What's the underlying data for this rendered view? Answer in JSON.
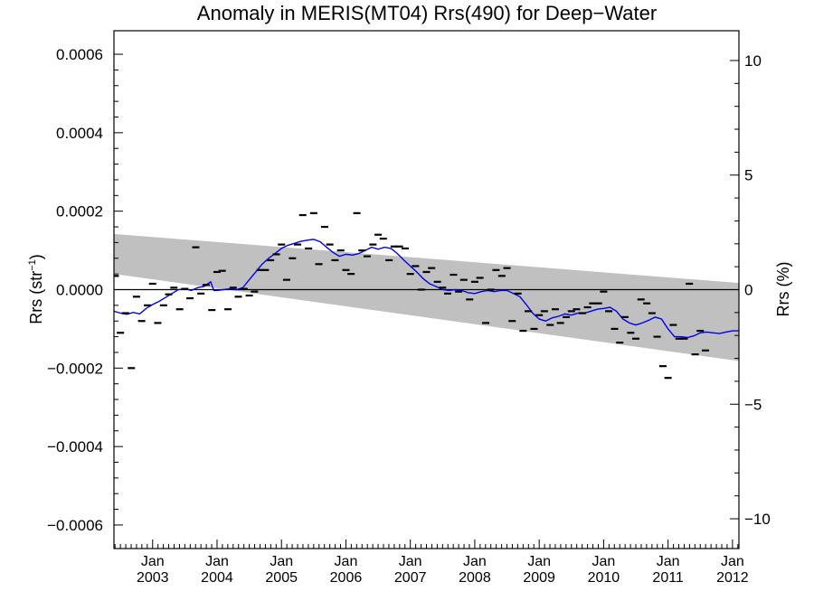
{
  "chart_data": {
    "type": "scatter",
    "title": "Anomaly in MERIS(MT04) Rrs(490) for Deep−Water",
    "ylabel_left_main": "Rrs (str",
    "ylabel_left_sup": "−1",
    "ylabel_left_close": ")",
    "ylabel_right": "Rrs (%)",
    "xlim": [
      2002.4,
      2012.1
    ],
    "ylim": [
      -0.00066,
      0.00066
    ],
    "ylim_right": [
      -11.3,
      11.3
    ],
    "y_ticks_left": [
      {
        "value": 0.0006,
        "label": "0.0006"
      },
      {
        "value": 0.0004,
        "label": "0.0004"
      },
      {
        "value": 0.0002,
        "label": "0.0002"
      },
      {
        "value": 0.0,
        "label": "0.0000"
      },
      {
        "value": -0.0002,
        "label": "−0.0002"
      },
      {
        "value": -0.0004,
        "label": "−0.0004"
      },
      {
        "value": -0.0006,
        "label": "−0.0006"
      }
    ],
    "y_ticks_right": [
      {
        "value": 10,
        "label": "10"
      },
      {
        "value": 5,
        "label": "5"
      },
      {
        "value": 0,
        "label": "0"
      },
      {
        "value": -5,
        "label": "−5"
      },
      {
        "value": -10,
        "label": "−10"
      }
    ],
    "x_ticks": [
      {
        "value": 2003.0,
        "month": "Jan",
        "year": "2003"
      },
      {
        "value": 2004.0,
        "month": "Jan",
        "year": "2004"
      },
      {
        "value": 2005.0,
        "month": "Jan",
        "year": "2005"
      },
      {
        "value": 2006.0,
        "month": "Jan",
        "year": "2006"
      },
      {
        "value": 2007.0,
        "month": "Jan",
        "year": "2007"
      },
      {
        "value": 2008.0,
        "month": "Jan",
        "year": "2008"
      },
      {
        "value": 2009.0,
        "month": "Jan",
        "year": "2009"
      },
      {
        "value": 2010.0,
        "month": "Jan",
        "year": "2010"
      },
      {
        "value": 2011.0,
        "month": "Jan",
        "year": "2011"
      },
      {
        "value": 2012.0,
        "month": "Jan",
        "year": "2012"
      }
    ],
    "band": {
      "color": "#c0c0c0",
      "upper": [
        [
          2002.4,
          0.000142
        ],
        [
          2012.1,
          1.7e-05
        ]
      ],
      "lower": [
        [
          2002.4,
          4e-05
        ],
        [
          2012.1,
          -0.000182
        ]
      ]
    },
    "zero_line": true,
    "monthly_anomalies": [
      [
        2002.42,
        3.5e-05
      ],
      [
        2002.5,
        -0.00011
      ],
      [
        2002.58,
        -6e-05
      ],
      [
        2002.67,
        -0.0002
      ],
      [
        2002.75,
        -1.8e-05
      ],
      [
        2002.83,
        -8e-05
      ],
      [
        2002.92,
        -4e-05
      ],
      [
        2003.0,
        1.5e-05
      ],
      [
        2003.08,
        -8.5e-05
      ],
      [
        2003.17,
        -4e-05
      ],
      [
        2003.25,
        -1.2e-05
      ],
      [
        2003.33,
        5e-06
      ],
      [
        2003.42,
        -5e-05
      ],
      [
        2003.5,
        2e-06
      ],
      [
        2003.58,
        -2.2e-05
      ],
      [
        2003.67,
        0.000108
      ],
      [
        2003.75,
        -1e-05
      ],
      [
        2003.83,
        1.2e-05
      ],
      [
        2003.92,
        -5.2e-05
      ],
      [
        2004.0,
        4.5e-05
      ],
      [
        2004.08,
        4.8e-05
      ],
      [
        2004.17,
        -5e-05
      ],
      [
        2004.25,
        5e-06
      ],
      [
        2004.33,
        -1.8e-05
      ],
      [
        2004.42,
        2e-06
      ],
      [
        2004.5,
        -1.5e-05
      ],
      [
        2004.58,
        -5e-06
      ],
      [
        2004.67,
        5e-05
      ],
      [
        2004.75,
        5e-05
      ],
      [
        2004.83,
        7.5e-05
      ],
      [
        2004.92,
        9e-05
      ],
      [
        2005.0,
        0.000115
      ],
      [
        2005.08,
        2.5e-05
      ],
      [
        2005.17,
        8e-05
      ],
      [
        2005.25,
        0.000115
      ],
      [
        2005.33,
        0.00019
      ],
      [
        2005.42,
        0.000105
      ],
      [
        2005.5,
        0.000195
      ],
      [
        2005.58,
        6.5e-05
      ],
      [
        2005.67,
        0.00016
      ],
      [
        2005.75,
        0.000115
      ],
      [
        2005.83,
        7.5e-05
      ],
      [
        2005.92,
        0.0001
      ],
      [
        2006.0,
        5e-05
      ],
      [
        2006.08,
        4e-05
      ],
      [
        2006.17,
        0.000195
      ],
      [
        2006.25,
        0.0001
      ],
      [
        2006.33,
        8.5e-05
      ],
      [
        2006.42,
        0.000115
      ],
      [
        2006.5,
        0.00014
      ],
      [
        2006.58,
        0.00013
      ],
      [
        2006.67,
        7.5e-05
      ],
      [
        2006.75,
        0.00011
      ],
      [
        2006.83,
        0.00011
      ],
      [
        2006.92,
        0.000105
      ],
      [
        2007.0,
        4e-05
      ],
      [
        2007.08,
        6e-05
      ],
      [
        2007.17,
        0.0
      ],
      [
        2007.25,
        4.5e-05
      ],
      [
        2007.33,
        5.5e-05
      ],
      [
        2007.42,
        2e-05
      ],
      [
        2007.5,
        5e-06
      ],
      [
        2007.58,
        -1e-05
      ],
      [
        2007.67,
        3.8e-05
      ],
      [
        2007.75,
        -5e-06
      ],
      [
        2007.83,
        2.5e-05
      ],
      [
        2007.92,
        -2.5e-05
      ],
      [
        2008.0,
        2e-05
      ],
      [
        2008.08,
        3e-05
      ],
      [
        2008.17,
        -8.5e-05
      ],
      [
        2008.25,
        0.0
      ],
      [
        2008.33,
        5e-05
      ],
      [
        2008.42,
        3.5e-05
      ],
      [
        2008.5,
        5.5e-05
      ],
      [
        2008.58,
        -8e-05
      ],
      [
        2008.67,
        -1e-05
      ],
      [
        2008.75,
        -0.000105
      ],
      [
        2008.83,
        -5.5e-05
      ],
      [
        2008.92,
        -0.0001
      ],
      [
        2009.0,
        -6.5e-05
      ],
      [
        2009.08,
        -5.5e-05
      ],
      [
        2009.17,
        -9e-05
      ],
      [
        2009.25,
        -5e-05
      ],
      [
        2009.33,
        -8.5e-05
      ],
      [
        2009.42,
        -7e-05
      ],
      [
        2009.5,
        -5.5e-05
      ],
      [
        2009.58,
        -5e-05
      ],
      [
        2009.67,
        -6e-05
      ],
      [
        2009.75,
        -4.5e-05
      ],
      [
        2009.83,
        -3.5e-05
      ],
      [
        2009.92,
        -3.5e-05
      ],
      [
        2010.0,
        -5e-06
      ],
      [
        2010.08,
        -5.5e-05
      ],
      [
        2010.17,
        -0.0001
      ],
      [
        2010.25,
        -0.000135
      ],
      [
        2010.33,
        -7e-05
      ],
      [
        2010.42,
        -0.00011
      ],
      [
        2010.5,
        -0.000125
      ],
      [
        2010.58,
        -2.5e-05
      ],
      [
        2010.67,
        -3.5e-05
      ],
      [
        2010.75,
        -6e-05
      ],
      [
        2010.83,
        -0.00012
      ],
      [
        2010.92,
        -0.000195
      ],
      [
        2011.0,
        -0.000225
      ],
      [
        2011.08,
        -9e-05
      ],
      [
        2011.17,
        -0.000125
      ],
      [
        2011.25,
        -0.000125
      ],
      [
        2011.33,
        1.5e-05
      ],
      [
        2011.42,
        -0.000165
      ],
      [
        2011.5,
        -0.000105
      ],
      [
        2011.58,
        -0.000155
      ]
    ],
    "running_mean": {
      "color": "#0000ee",
      "points": [
        [
          2002.4,
          -5.5e-05
        ],
        [
          2002.5,
          -6e-05
        ],
        [
          2002.6,
          -6.3e-05
        ],
        [
          2002.7,
          -5.8e-05
        ],
        [
          2002.8,
          -6.2e-05
        ],
        [
          2002.9,
          -4.8e-05
        ],
        [
          2003.0,
          -3.8e-05
        ],
        [
          2003.1,
          -3e-05
        ],
        [
          2003.2,
          -2e-05
        ],
        [
          2003.3,
          -1e-05
        ],
        [
          2003.4,
          0.0
        ],
        [
          2003.5,
          2e-06
        ],
        [
          2003.6,
          -2e-06
        ],
        [
          2003.7,
          5e-06
        ],
        [
          2003.8,
          8e-06
        ],
        [
          2003.9,
          2e-05
        ],
        [
          2003.95,
          -2e-06
        ],
        [
          2004.0,
          -2e-06
        ],
        [
          2004.1,
          0.0
        ],
        [
          2004.2,
          2e-06
        ],
        [
          2004.3,
          0.0
        ],
        [
          2004.4,
          5e-06
        ],
        [
          2004.5,
          2.5e-05
        ],
        [
          2004.6,
          4.5e-05
        ],
        [
          2004.7,
          6.5e-05
        ],
        [
          2004.8,
          8e-05
        ],
        [
          2004.9,
          9.2e-05
        ],
        [
          2005.0,
          0.000105
        ],
        [
          2005.1,
          0.000113
        ],
        [
          2005.2,
          0.000118
        ],
        [
          2005.3,
          0.000123
        ],
        [
          2005.4,
          0.000126
        ],
        [
          2005.5,
          0.000128
        ],
        [
          2005.6,
          0.000122
        ],
        [
          2005.7,
          0.000108
        ],
        [
          2005.8,
          9.5e-05
        ],
        [
          2005.9,
          8.5e-05
        ],
        [
          2006.0,
          9e-05
        ],
        [
          2006.1,
          8.8e-05
        ],
        [
          2006.2,
          9.2e-05
        ],
        [
          2006.3,
          0.0001
        ],
        [
          2006.4,
          0.000108
        ],
        [
          2006.5,
          0.000103
        ],
        [
          2006.6,
          0.000108
        ],
        [
          2006.7,
          0.000105
        ],
        [
          2006.8,
          9.2e-05
        ],
        [
          2006.9,
          7.5e-05
        ],
        [
          2007.0,
          6e-05
        ],
        [
          2007.1,
          4.5e-05
        ],
        [
          2007.2,
          2.8e-05
        ],
        [
          2007.3,
          1.5e-05
        ],
        [
          2007.4,
          8e-06
        ],
        [
          2007.5,
          0.0
        ],
        [
          2007.6,
          -2e-06
        ],
        [
          2007.7,
          0.0
        ],
        [
          2007.8,
          -2e-06
        ],
        [
          2007.9,
          -8e-06
        ],
        [
          2008.0,
          -1e-05
        ],
        [
          2008.1,
          -5e-06
        ],
        [
          2008.2,
          -2e-06
        ],
        [
          2008.3,
          -5e-06
        ],
        [
          2008.4,
          -2e-06
        ],
        [
          2008.5,
          -2e-06
        ],
        [
          2008.6,
          -1e-05
        ],
        [
          2008.7,
          -1.8e-05
        ],
        [
          2008.8,
          -3.8e-05
        ],
        [
          2008.9,
          -6e-05
        ],
        [
          2009.0,
          -7.5e-05
        ],
        [
          2009.1,
          -8e-05
        ],
        [
          2009.2,
          -7.2e-05
        ],
        [
          2009.3,
          -6.8e-05
        ],
        [
          2009.4,
          -6.2e-05
        ],
        [
          2009.5,
          -6.5e-05
        ],
        [
          2009.6,
          -6e-05
        ],
        [
          2009.7,
          -6e-05
        ],
        [
          2009.8,
          -5.5e-05
        ],
        [
          2009.9,
          -5e-05
        ],
        [
          2010.0,
          -4.8e-05
        ],
        [
          2010.1,
          -4.5e-05
        ],
        [
          2010.2,
          -5.5e-05
        ],
        [
          2010.3,
          -7.5e-05
        ],
        [
          2010.4,
          -8.5e-05
        ],
        [
          2010.5,
          -9e-05
        ],
        [
          2010.6,
          -8.5e-05
        ],
        [
          2010.7,
          -7.8e-05
        ],
        [
          2010.8,
          -7e-05
        ],
        [
          2010.9,
          -7.5e-05
        ],
        [
          2011.0,
          -0.0001
        ],
        [
          2011.1,
          -0.00012
        ],
        [
          2011.2,
          -0.00012
        ],
        [
          2011.3,
          -0.000122
        ],
        [
          2011.4,
          -0.000118
        ],
        [
          2011.5,
          -0.00011
        ],
        [
          2011.6,
          -0.000108
        ],
        [
          2011.7,
          -0.00011
        ],
        [
          2011.8,
          -0.000112
        ],
        [
          2011.9,
          -0.000108
        ],
        [
          2012.0,
          -0.000105
        ],
        [
          2012.1,
          -0.000105
        ]
      ]
    }
  }
}
